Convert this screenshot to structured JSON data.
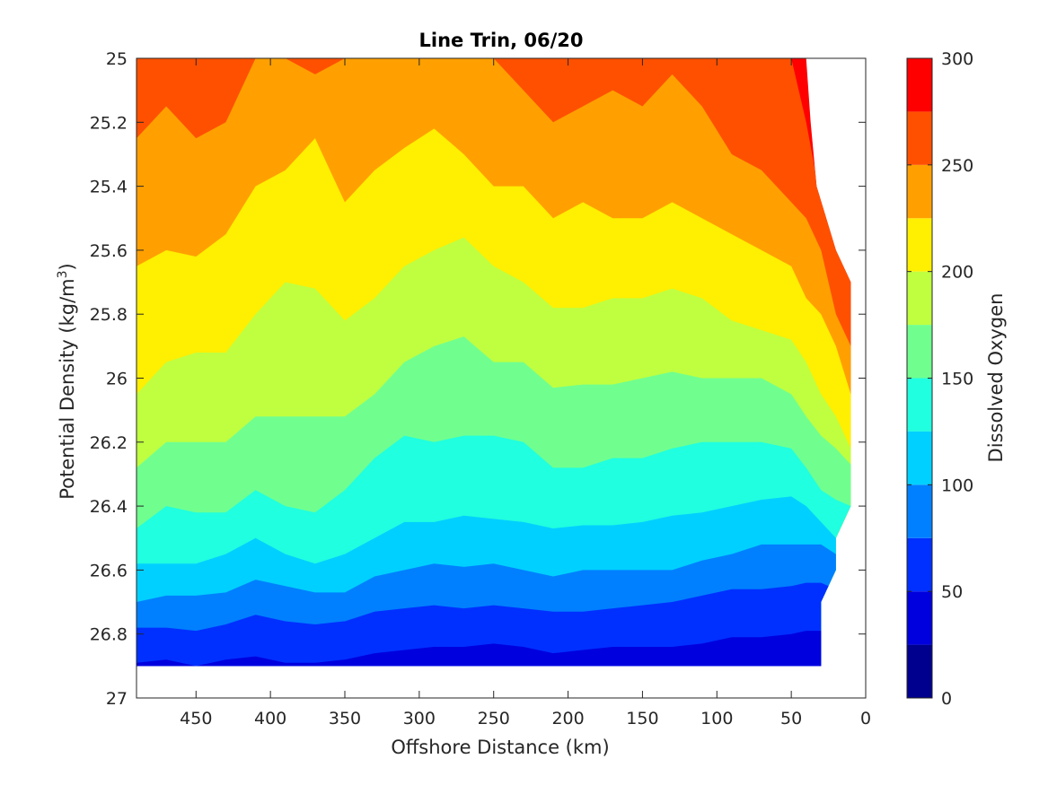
{
  "chart_data": {
    "type": "contour",
    "title": "Line Trin, 06/20",
    "xlabel": "Offshore Distance (km)",
    "ylabel_main": "Potential Density (kg/m",
    "ylabel_sup": "3",
    "ylabel_end": ")",
    "xlim": [
      490,
      0
    ],
    "ylim": [
      25,
      27
    ],
    "x_reversed": true,
    "y_reversed": true,
    "xticks": [
      450,
      400,
      350,
      300,
      250,
      200,
      150,
      100,
      50,
      0
    ],
    "xtick_labels": [
      "450",
      "400",
      "350",
      "300",
      "250",
      "200",
      "150",
      "100",
      "50",
      "0"
    ],
    "yticks": [
      25,
      25.2,
      25.4,
      25.6,
      25.8,
      26,
      26.2,
      26.4,
      26.6,
      26.8,
      27
    ],
    "ytick_labels": [
      "25",
      "25.2",
      "25.4",
      "25.6",
      "25.8",
      "26",
      "26.2",
      "26.4",
      "26.6",
      "26.8",
      "27"
    ],
    "colorbar": {
      "label": "Dissolved Oxygen",
      "range": [
        0,
        300
      ],
      "ticks": [
        0,
        50,
        100,
        150,
        200,
        250,
        300
      ],
      "tick_labels": [
        "0",
        "50",
        "100",
        "150",
        "200",
        "250",
        "300"
      ],
      "levels": [
        0,
        25,
        50,
        75,
        100,
        125,
        150,
        175,
        200,
        225,
        250,
        275,
        300
      ],
      "colors": [
        "#00008f",
        "#0000df",
        "#0030ff",
        "#0080ff",
        "#00d0ff",
        "#20ffdf",
        "#70ff8f",
        "#bfff40",
        "#ffef00",
        "#ffa000",
        "#ff5000",
        "#ff0000",
        "#b00000"
      ]
    },
    "x": [
      490,
      470,
      450,
      430,
      410,
      390,
      370,
      350,
      330,
      310,
      290,
      270,
      250,
      230,
      210,
      190,
      170,
      150,
      130,
      110,
      90,
      70,
      50,
      40,
      30,
      20,
      10
    ],
    "contours": [
      {
        "level": 275,
        "y": [
          25,
          25,
          25,
          25,
          25,
          25,
          25,
          25,
          25,
          25,
          25,
          25,
          25,
          25,
          25,
          25,
          25,
          25,
          25,
          25,
          25,
          25,
          25,
          25.2,
          25.45,
          25.55,
          25.65
        ]
      },
      {
        "level": 250,
        "y": [
          25.25,
          25.15,
          25.25,
          25.2,
          25,
          25,
          25.05,
          25,
          25,
          25,
          25,
          25,
          25,
          25.1,
          25.2,
          25.15,
          25.1,
          25.15,
          25.05,
          25.15,
          25.3,
          25.35,
          25.45,
          25.5,
          25.6,
          25.8,
          25.9
        ]
      },
      {
        "level": 225,
        "y": [
          25.65,
          25.6,
          25.62,
          25.55,
          25.4,
          25.35,
          25.25,
          25.45,
          25.35,
          25.28,
          25.22,
          25.3,
          25.4,
          25.4,
          25.5,
          25.45,
          25.5,
          25.5,
          25.45,
          25.5,
          25.55,
          25.6,
          25.65,
          25.75,
          25.8,
          25.9,
          26.05
        ]
      },
      {
        "level": 200,
        "y": [
          26.05,
          25.95,
          25.92,
          25.92,
          25.8,
          25.7,
          25.72,
          25.82,
          25.75,
          25.65,
          25.6,
          25.56,
          25.65,
          25.7,
          25.78,
          25.78,
          25.75,
          25.75,
          25.72,
          25.75,
          25.82,
          25.85,
          25.88,
          25.95,
          26.05,
          26.12,
          26.22
        ]
      },
      {
        "level": 175,
        "y": [
          26.28,
          26.2,
          26.2,
          26.2,
          26.12,
          26.12,
          26.12,
          26.12,
          26.05,
          25.95,
          25.9,
          25.87,
          25.95,
          25.95,
          26.03,
          26.02,
          26.02,
          26,
          25.98,
          26,
          26,
          26,
          26.05,
          26.12,
          26.18,
          26.22,
          26.27
        ]
      },
      {
        "level": 150,
        "y": [
          26.47,
          26.4,
          26.42,
          26.42,
          26.35,
          26.4,
          26.42,
          26.35,
          26.25,
          26.18,
          26.2,
          26.18,
          26.18,
          26.2,
          26.28,
          26.28,
          26.25,
          26.25,
          26.22,
          26.2,
          26.2,
          26.2,
          26.22,
          26.28,
          26.35,
          26.38,
          26.4
        ]
      },
      {
        "level": 125,
        "y": [
          26.58,
          26.58,
          26.58,
          26.55,
          26.5,
          26.55,
          26.58,
          26.55,
          26.5,
          26.45,
          26.45,
          26.43,
          26.44,
          26.45,
          26.47,
          26.46,
          26.46,
          26.45,
          26.43,
          26.42,
          26.4,
          26.38,
          26.37,
          26.4,
          26.45,
          26.5,
          26.55
        ]
      },
      {
        "level": 100,
        "y": [
          26.7,
          26.68,
          26.68,
          26.67,
          26.63,
          26.65,
          26.67,
          26.67,
          26.62,
          26.6,
          26.58,
          26.59,
          26.58,
          26.6,
          26.62,
          26.6,
          26.6,
          26.6,
          26.6,
          26.57,
          26.55,
          26.52,
          26.52,
          26.52,
          26.52,
          26.55,
          26.6
        ]
      },
      {
        "level": 75,
        "y": [
          26.78,
          26.78,
          26.79,
          26.77,
          26.74,
          26.76,
          26.77,
          26.76,
          26.73,
          26.72,
          26.71,
          26.72,
          26.71,
          26.72,
          26.73,
          26.73,
          26.72,
          26.71,
          26.7,
          26.68,
          26.66,
          26.66,
          26.65,
          26.64,
          26.64,
          26.66,
          26.7
        ]
      },
      {
        "level": 50,
        "y": [
          26.89,
          26.88,
          26.9,
          26.88,
          26.87,
          26.89,
          26.89,
          26.88,
          26.86,
          26.85,
          26.84,
          26.84,
          26.83,
          26.84,
          26.86,
          26.85,
          26.84,
          26.84,
          26.84,
          26.83,
          26.81,
          26.81,
          26.8,
          26.79,
          26.79,
          26.8,
          26.82
        ]
      }
    ],
    "data_extent": {
      "bottom_y": 26.9,
      "right_boundary": [
        {
          "x": 40,
          "y": 25
        },
        {
          "x": 37,
          "y": 25.2
        },
        {
          "x": 33,
          "y": 25.4
        },
        {
          "x": 20,
          "y": 25.6
        },
        {
          "x": 10,
          "y": 25.7
        },
        {
          "x": 10,
          "y": 26.4
        },
        {
          "x": 20,
          "y": 26.5
        },
        {
          "x": 20,
          "y": 26.6
        },
        {
          "x": 30,
          "y": 26.7
        },
        {
          "x": 30,
          "y": 26.9
        }
      ]
    }
  }
}
